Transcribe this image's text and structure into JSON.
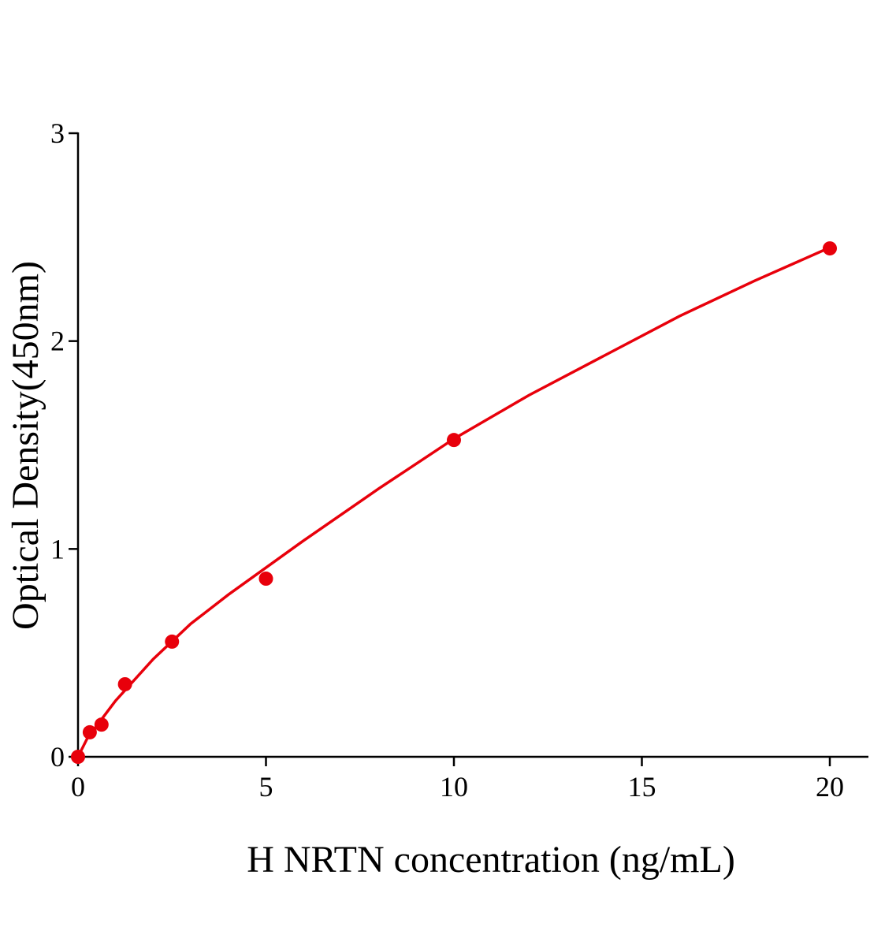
{
  "chart_data": {
    "type": "scatter",
    "x_label": "H NRTN concentration (ng/mL)",
    "y_label": "Optical Density(450nm)",
    "series": [
      {
        "type": "scatter",
        "color": "#e8000b",
        "x": [
          0,
          0.3125,
          0.625,
          1.25,
          2.5,
          5,
          10,
          20
        ],
        "values": [
          0.0,
          0.118,
          0.155,
          0.349,
          0.554,
          0.857,
          1.524,
          2.446
        ]
      },
      {
        "type": "line",
        "color": "#e8000b",
        "x": [
          0,
          0.25,
          0.5,
          1,
          2,
          3,
          4,
          5,
          6,
          8,
          10,
          12,
          14,
          16,
          18,
          20
        ],
        "values": [
          0,
          0.09,
          0.15,
          0.27,
          0.47,
          0.64,
          0.78,
          0.91,
          1.04,
          1.29,
          1.53,
          1.74,
          1.93,
          2.12,
          2.29,
          2.45
        ]
      }
    ],
    "xlim": [
      0,
      21
    ],
    "ylim": [
      0,
      3
    ],
    "xticks": [
      0,
      5,
      10,
      15,
      20
    ],
    "yticks": [
      0,
      1,
      2,
      3
    ]
  }
}
